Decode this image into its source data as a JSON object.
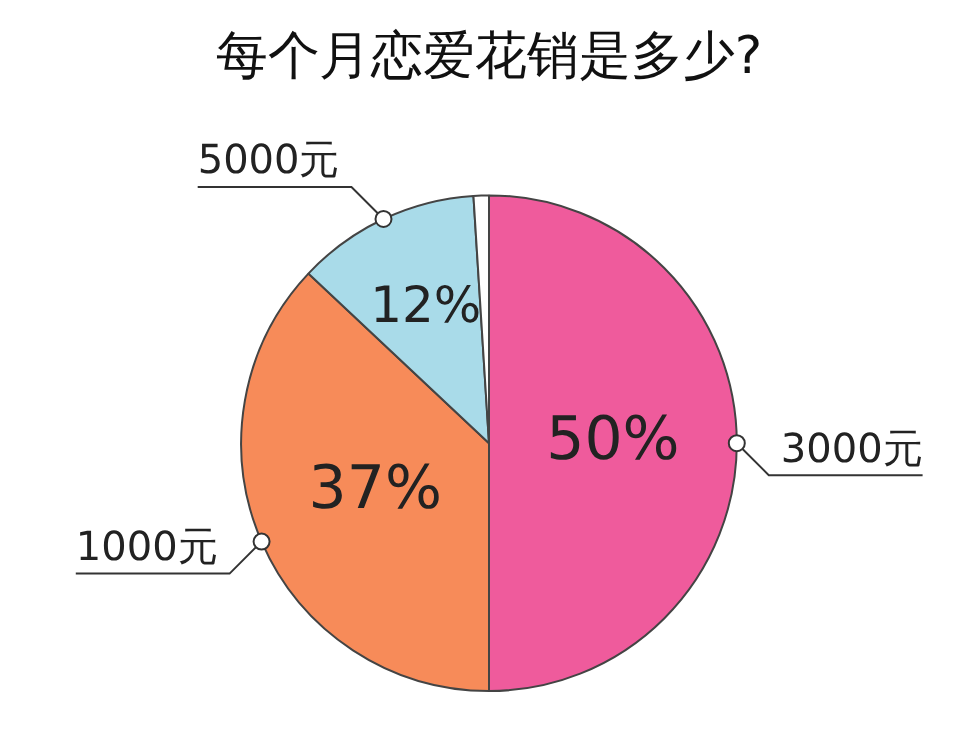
{
  "chart_data": {
    "type": "pie",
    "title": "每个月恋爱花销是多少?",
    "categories": [
      "3000元",
      "1000元",
      "5000元",
      null
    ],
    "values": [
      50,
      37,
      12,
      1
    ],
    "colors": [
      "#ef5b9c",
      "#f78b59",
      "#a9dbe9",
      "#ffffff"
    ],
    "value_labels": [
      "50%",
      "37%",
      "12%",
      null
    ],
    "legend": false
  }
}
